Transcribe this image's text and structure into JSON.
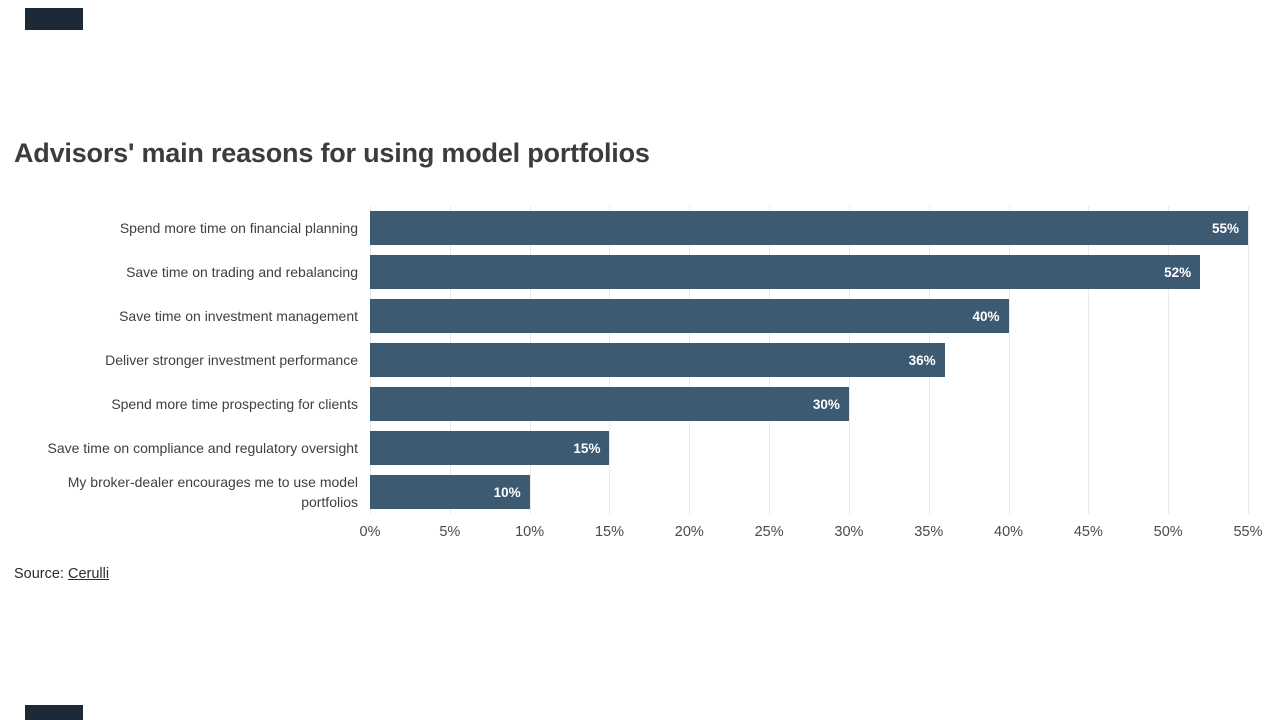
{
  "page": {
    "title": "Advisors' main reasons for using model portfolios",
    "source_prefix": "Source: ",
    "source_link": "Cerulli"
  },
  "chart_data": {
    "type": "bar",
    "orientation": "horizontal",
    "title": "Advisors' main reasons for using model portfolios",
    "categories": [
      "Spend more time on financial planning",
      "Save time on trading and rebalancing",
      "Save time on investment management",
      "Deliver stronger investment performance",
      "Spend more time prospecting for clients",
      "Save time on compliance and regulatory oversight",
      "My broker-dealer encourages me to use model portfolios"
    ],
    "values": [
      55,
      52,
      40,
      36,
      30,
      15,
      10
    ],
    "value_labels": [
      "55%",
      "52%",
      "40%",
      "36%",
      "30%",
      "15%",
      "10%"
    ],
    "xlabel": "",
    "ylabel": "",
    "axis": {
      "min": 0,
      "max": 55,
      "step": 5,
      "tick_labels": [
        "0%",
        "5%",
        "10%",
        "15%",
        "20%",
        "25%",
        "30%",
        "35%",
        "40%",
        "45%",
        "50%",
        "55%"
      ]
    },
    "grid": true,
    "legend": false,
    "bar_color": "#3d5a73",
    "value_label_color": "#ffffff",
    "source": "Cerulli"
  },
  "colors": {
    "bar": "#3d5a73",
    "title_text": "#3c3c3c",
    "label_text": "#3f3f3f",
    "axis_text": "#4a4a4a",
    "grid_line": "#e9e9e9",
    "corner_bar": "#1d2936",
    "background": "#ffffff"
  }
}
